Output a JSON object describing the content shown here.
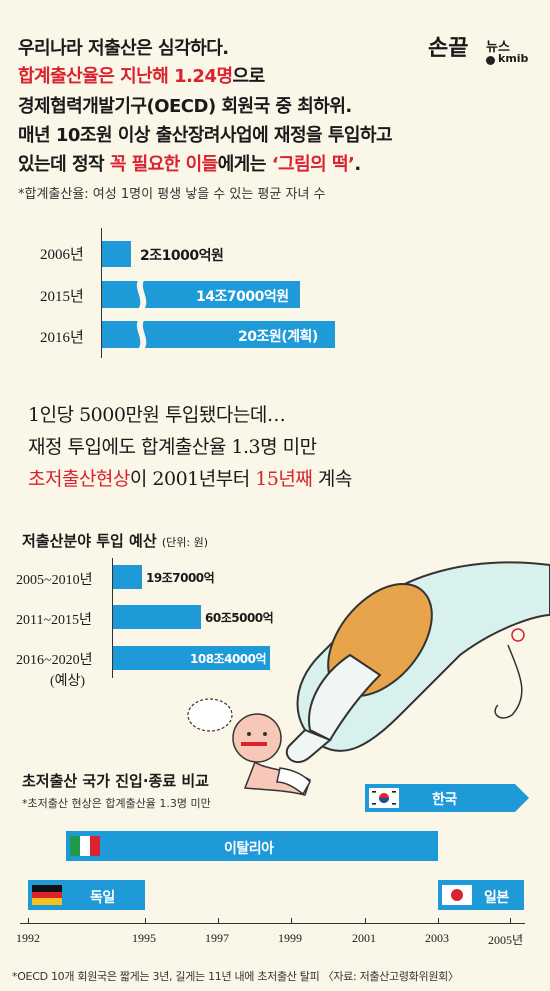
{
  "logo": {
    "main": "손끝",
    "sub": "뉴스",
    "brand": "kmib"
  },
  "headline": {
    "l1": "우리나라 저출산은 심각하다.",
    "l2_red": "합계출산율은 지난해 1.24명",
    "l2_rest": "으로",
    "l3": "경제협력개발기구(OECD) 회원국 중 최하위.",
    "l4": "매년 10조원 이상 출산장려사업에 재정을 투입하고",
    "l5_a": "있는데 정작 ",
    "l5_red1": "꼭 필요한 이들",
    "l5_b": "에게는 ",
    "l5_red2": "‘그림의 떡’",
    "l5_c": ".",
    "footnote": "*합계출산율: 여성 1명이 평생 낳을 수 있는 평균 자녀 수"
  },
  "mid_text": {
    "l1": "1인당 5000만원 투입됐다는데…",
    "l2": "재정 투입에도 합계출산율 1.3명 미만",
    "l3_red": "초저출산현상",
    "l3_a": "이 2001년부터 ",
    "l3_red2": "15년째",
    "l3_b": " 계속"
  },
  "colors": {
    "bar": "#1e9ad9",
    "accent": "#d9232f",
    "background": "#fbf7e8"
  },
  "chart_data": [
    {
      "type": "bar",
      "orientation": "horizontal",
      "categories": [
        "2006년",
        "2015년",
        "2016년"
      ],
      "values": [
        21000,
        147000,
        200000
      ],
      "labels": [
        "2조1000억원",
        "14조7000억원",
        "20조원(계획)"
      ],
      "unit": "억원",
      "broken_axis": true
    },
    {
      "type": "bar",
      "orientation": "horizontal",
      "title": "저출산분야 투입 예산",
      "unit_note": "(단위: 원)",
      "categories": [
        "2005~2010년",
        "2011~2015년",
        "2016~2020년"
      ],
      "category_note": "(예상)",
      "values": [
        197000,
        605000,
        1084000
      ],
      "labels": [
        "19조7000억",
        "60조5000억",
        "108조4000억"
      ]
    },
    {
      "type": "bar",
      "orientation": "timeline",
      "title": "초저출산 국가 진입·종료 비교",
      "subtitle": "*초저출산 현상은 합계출산율 1.3명 미만",
      "x_ticks": [
        "1992",
        "1995",
        "1997",
        "1999",
        "2001",
        "2003",
        "2005년"
      ],
      "series": [
        {
          "name": "한국",
          "start": 2001,
          "end": 2005,
          "flag": "korea"
        },
        {
          "name": "이탈리아",
          "start": 1993,
          "end": 2003,
          "flag": "italy"
        },
        {
          "name": "독일",
          "start": 1992,
          "end": 1995,
          "flag": "germany"
        },
        {
          "name": "일본",
          "start": 2003,
          "end": 2005,
          "flag": "japan"
        }
      ],
      "xlim": [
        1992,
        2005
      ]
    }
  ],
  "footer": "*OECD 10개 회원국은 짧게는 3년, 길게는 11년 내에 초저출산 탈피 〈자료: 저출산고령화위원회〉"
}
